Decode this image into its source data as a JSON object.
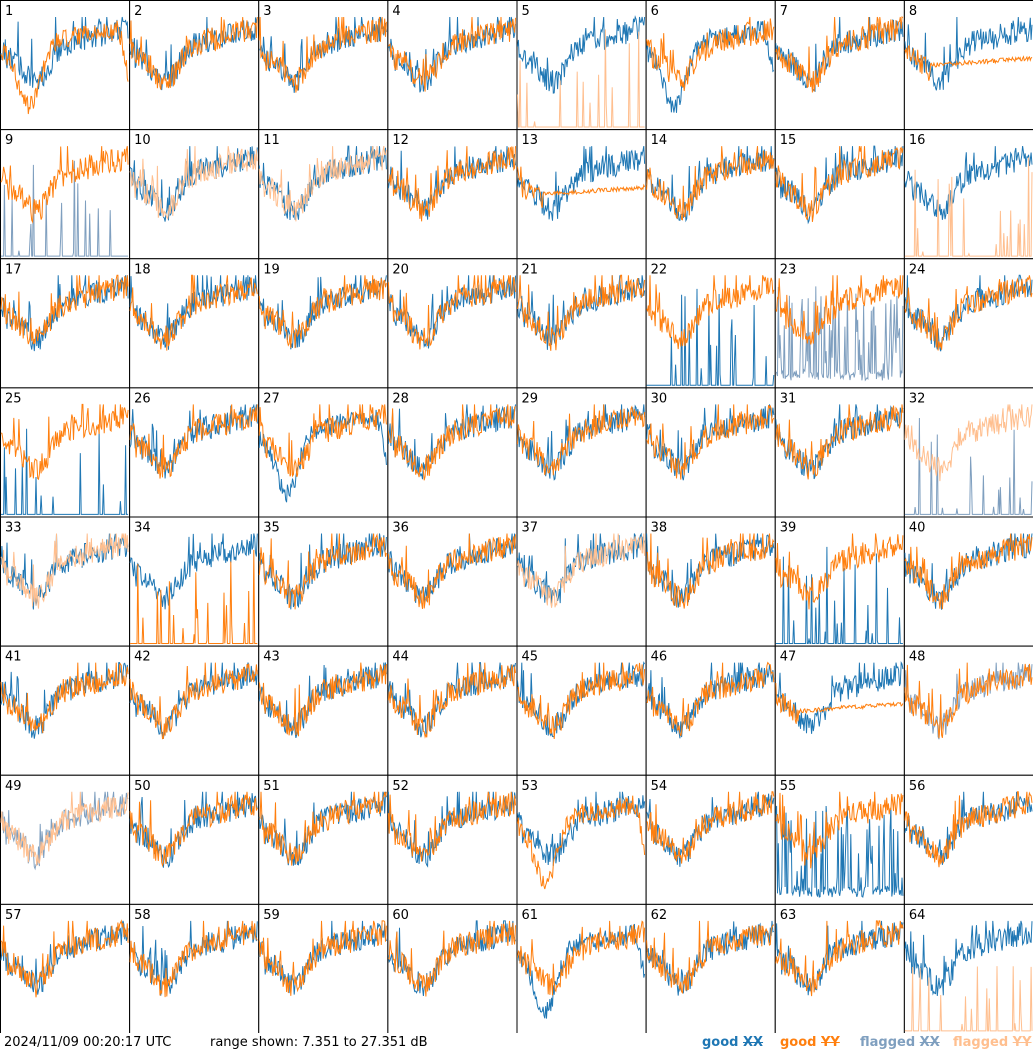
{
  "chart_data": {
    "type": "line",
    "layout": "small-multiples 8x8",
    "timestamp": "2024/11/09 00:20:17 UTC",
    "range_text": "range shown: 7.351 to 27.351 dB",
    "ylim": [
      7.351,
      27.351
    ],
    "legend": [
      {
        "label": "good XX",
        "color": "#1f77b4"
      },
      {
        "label": "good YY",
        "color": "#ff7f0e"
      },
      {
        "label": "flagged XX",
        "color": "#7f9fbf"
      },
      {
        "label": "flagged YY",
        "color": "#ffbf8f"
      }
    ],
    "colors": {
      "good_xx": "#1f77b4",
      "good_yy": "#ff7f0e",
      "flagged_xx": "#7f9fbf",
      "flagged_yy": "#ffbf8f"
    },
    "panels": [
      {
        "id": "1",
        "xx": "g",
        "yy": "g",
        "xs": "norm",
        "ys": "dipdeep"
      },
      {
        "id": "2",
        "xx": "g",
        "yy": "g",
        "xs": "norm",
        "ys": "norm"
      },
      {
        "id": "3",
        "xx": "g",
        "yy": "g",
        "xs": "norm",
        "ys": "norm"
      },
      {
        "id": "4",
        "xx": "g",
        "yy": "g",
        "xs": "norm",
        "ys": "norm"
      },
      {
        "id": "5",
        "xx": "g",
        "yy": "f",
        "xs": "norm",
        "ys": "spiky"
      },
      {
        "id": "6",
        "xx": "g",
        "yy": "g",
        "xs": "dipdeep",
        "ys": "norm"
      },
      {
        "id": "7",
        "xx": "g",
        "yy": "g",
        "xs": "norm",
        "ys": "norm"
      },
      {
        "id": "8",
        "xx": "g",
        "yy": "g",
        "xs": "norm",
        "ys": "flat"
      },
      {
        "id": "9",
        "xx": "f",
        "yy": "g",
        "xs": "spiky",
        "ys": "norm"
      },
      {
        "id": "10",
        "xx": "g",
        "yy": "f",
        "xs": "norm",
        "ys": "norm"
      },
      {
        "id": "11",
        "xx": "g",
        "yy": "f",
        "xs": "norm",
        "ys": "norm"
      },
      {
        "id": "12",
        "xx": "g",
        "yy": "g",
        "xs": "norm",
        "ys": "norm"
      },
      {
        "id": "13",
        "xx": "g",
        "yy": "g",
        "xs": "norm",
        "ys": "flat"
      },
      {
        "id": "14",
        "xx": "g",
        "yy": "g",
        "xs": "norm",
        "ys": "norm"
      },
      {
        "id": "15",
        "xx": "g",
        "yy": "g",
        "xs": "norm",
        "ys": "norm"
      },
      {
        "id": "16",
        "xx": "g",
        "yy": "f",
        "xs": "norm",
        "ys": "spiky"
      },
      {
        "id": "17",
        "xx": "g",
        "yy": "g",
        "xs": "norm",
        "ys": "norm"
      },
      {
        "id": "18",
        "xx": "g",
        "yy": "g",
        "xs": "norm",
        "ys": "norm"
      },
      {
        "id": "19",
        "xx": "g",
        "yy": "g",
        "xs": "norm",
        "ys": "norm"
      },
      {
        "id": "20",
        "xx": "g",
        "yy": "g",
        "xs": "norm",
        "ys": "norm"
      },
      {
        "id": "21",
        "xx": "g",
        "yy": "g",
        "xs": "norm",
        "ys": "norm"
      },
      {
        "id": "22",
        "xx": "g",
        "yy": "g",
        "xs": "spiky",
        "ys": "norm"
      },
      {
        "id": "23",
        "xx": "f",
        "yy": "g",
        "xs": "spikyhigh",
        "ys": "norm"
      },
      {
        "id": "24",
        "xx": "g",
        "yy": "g",
        "xs": "norm",
        "ys": "norm"
      },
      {
        "id": "25",
        "xx": "g",
        "yy": "g",
        "xs": "spiky",
        "ys": "norm"
      },
      {
        "id": "26",
        "xx": "g",
        "yy": "g",
        "xs": "norm",
        "ys": "norm"
      },
      {
        "id": "27",
        "xx": "g",
        "yy": "g",
        "xs": "dipdeep",
        "ys": "norm"
      },
      {
        "id": "28",
        "xx": "g",
        "yy": "g",
        "xs": "norm",
        "ys": "norm"
      },
      {
        "id": "29",
        "xx": "g",
        "yy": "g",
        "xs": "norm",
        "ys": "norm"
      },
      {
        "id": "30",
        "xx": "g",
        "yy": "g",
        "xs": "norm",
        "ys": "norm"
      },
      {
        "id": "31",
        "xx": "g",
        "yy": "g",
        "xs": "norm",
        "ys": "norm"
      },
      {
        "id": "32",
        "xx": "f",
        "yy": "f",
        "xs": "spiky",
        "ys": "norm"
      },
      {
        "id": "33",
        "xx": "g",
        "yy": "f",
        "xs": "norm",
        "ys": "norm"
      },
      {
        "id": "34",
        "xx": "g",
        "yy": "g",
        "xs": "norm",
        "ys": "spiky"
      },
      {
        "id": "35",
        "xx": "g",
        "yy": "g",
        "xs": "norm",
        "ys": "norm"
      },
      {
        "id": "36",
        "xx": "g",
        "yy": "g",
        "xs": "norm",
        "ys": "norm"
      },
      {
        "id": "37",
        "xx": "g",
        "yy": "f",
        "xs": "norm",
        "ys": "norm"
      },
      {
        "id": "38",
        "xx": "g",
        "yy": "g",
        "xs": "norm",
        "ys": "norm"
      },
      {
        "id": "39",
        "xx": "g",
        "yy": "g",
        "xs": "spiky",
        "ys": "norm"
      },
      {
        "id": "40",
        "xx": "g",
        "yy": "g",
        "xs": "norm",
        "ys": "norm"
      },
      {
        "id": "41",
        "xx": "g",
        "yy": "g",
        "xs": "norm",
        "ys": "norm"
      },
      {
        "id": "42",
        "xx": "g",
        "yy": "g",
        "xs": "norm",
        "ys": "norm"
      },
      {
        "id": "43",
        "xx": "g",
        "yy": "g",
        "xs": "norm",
        "ys": "norm"
      },
      {
        "id": "44",
        "xx": "g",
        "yy": "g",
        "xs": "norm",
        "ys": "norm"
      },
      {
        "id": "45",
        "xx": "g",
        "yy": "g",
        "xs": "norm",
        "ys": "norm"
      },
      {
        "id": "46",
        "xx": "g",
        "yy": "g",
        "xs": "norm",
        "ys": "norm"
      },
      {
        "id": "47",
        "xx": "g",
        "yy": "g",
        "xs": "norm",
        "ys": "flat"
      },
      {
        "id": "48",
        "xx": "f",
        "yy": "g",
        "xs": "norm",
        "ys": "norm"
      },
      {
        "id": "49",
        "xx": "f",
        "yy": "f",
        "xs": "norm",
        "ys": "norm"
      },
      {
        "id": "50",
        "xx": "g",
        "yy": "g",
        "xs": "norm",
        "ys": "norm"
      },
      {
        "id": "51",
        "xx": "g",
        "yy": "g",
        "xs": "norm",
        "ys": "norm"
      },
      {
        "id": "52",
        "xx": "g",
        "yy": "g",
        "xs": "norm",
        "ys": "norm"
      },
      {
        "id": "53",
        "xx": "g",
        "yy": "g",
        "xs": "norm",
        "ys": "dipdeep"
      },
      {
        "id": "54",
        "xx": "g",
        "yy": "g",
        "xs": "norm",
        "ys": "norm"
      },
      {
        "id": "55",
        "xx": "g",
        "yy": "g",
        "xs": "spikyhigh",
        "ys": "norm"
      },
      {
        "id": "56",
        "xx": "g",
        "yy": "g",
        "xs": "norm",
        "ys": "norm"
      },
      {
        "id": "57",
        "xx": "g",
        "yy": "g",
        "xs": "norm",
        "ys": "norm"
      },
      {
        "id": "58",
        "xx": "g",
        "yy": "g",
        "xs": "norm",
        "ys": "norm"
      },
      {
        "id": "59",
        "xx": "g",
        "yy": "g",
        "xs": "norm",
        "ys": "norm"
      },
      {
        "id": "60",
        "xx": "g",
        "yy": "g",
        "xs": "norm",
        "ys": "norm"
      },
      {
        "id": "61",
        "xx": "g",
        "yy": "g",
        "xs": "dipdeep",
        "ys": "norm"
      },
      {
        "id": "62",
        "xx": "g",
        "yy": "g",
        "xs": "norm",
        "ys": "norm"
      },
      {
        "id": "63",
        "xx": "g",
        "yy": "g",
        "xs": "norm",
        "ys": "norm"
      },
      {
        "id": "64",
        "xx": "g",
        "yy": "f",
        "xs": "norm",
        "ys": "spiky"
      }
    ]
  }
}
